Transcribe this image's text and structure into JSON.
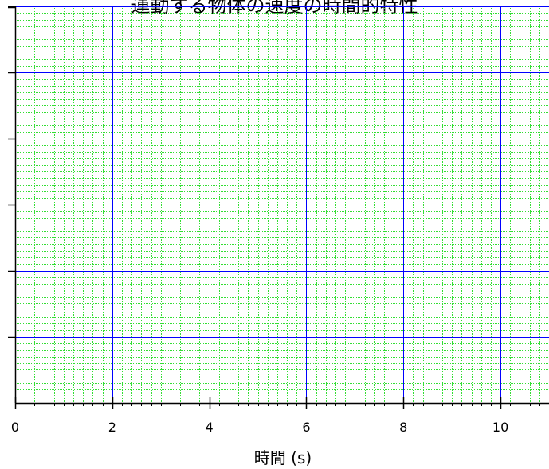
{
  "chart_data": {
    "type": "line",
    "title": "運動する物体の速度の時間的特性",
    "xlabel": "時間 (s)",
    "ylabel": "",
    "xlim": [
      0,
      11
    ],
    "x_ticks": [
      0,
      2,
      4,
      6,
      8,
      10
    ],
    "x_tick_labels": [
      "0",
      "2",
      "4",
      "6",
      "8",
      "10"
    ],
    "y_major_tick_count": 6,
    "x_minor_step": 0.2,
    "y_minor_divisions_per_major": 10,
    "grid": true,
    "major_grid_color": "#0000ff",
    "minor_grid_color": "#33dd33",
    "series": []
  }
}
